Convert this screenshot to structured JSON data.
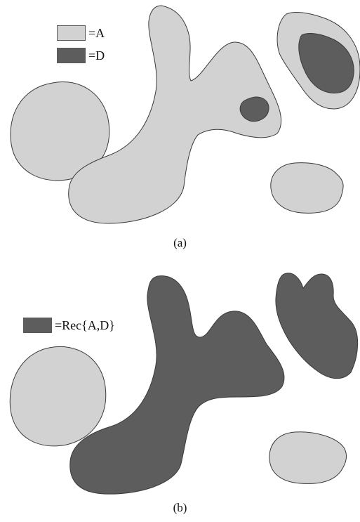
{
  "colors": {
    "light_region": "#d2d2d2",
    "dark_region": "#5d5d5d",
    "outline": "#3a3a3a"
  },
  "panel_a": {
    "caption": "(a)",
    "legend": [
      {
        "label": "=A",
        "color": "#d2d2d2"
      },
      {
        "label": "=D",
        "color": "#5d5d5d"
      }
    ]
  },
  "panel_b": {
    "caption": "(b)",
    "legend": [
      {
        "label": "=Rec{A,D}",
        "color": "#5d5d5d"
      }
    ]
  }
}
